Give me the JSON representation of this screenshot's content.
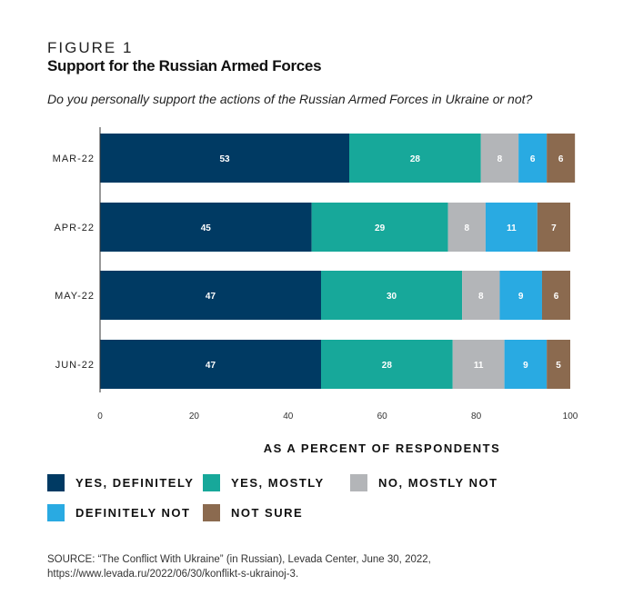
{
  "figure_label": "FIGURE 1",
  "chart_data": {
    "type": "bar",
    "orientation": "horizontal",
    "stacked": true,
    "title": "Support for the Russian Armed Forces",
    "subtitle": "Do you personally support the actions of the Russian Armed Forces in Ukraine or not?",
    "xlabel": "AS A PERCENT OF RESPONDENTS",
    "ylabel": "",
    "xlim": [
      0,
      100
    ],
    "xticks": [
      0,
      20,
      40,
      60,
      80,
      100
    ],
    "grid": false,
    "legend_placement": "bottom",
    "categories": [
      "MAR-22",
      "APR-22",
      "MAY-22",
      "JUN-22"
    ],
    "series": [
      {
        "name": "YES, DEFINITELY",
        "color": "#003a63",
        "values": [
          53,
          45,
          47,
          47
        ]
      },
      {
        "name": "YES, MOSTLY",
        "color": "#17a89a",
        "values": [
          28,
          29,
          30,
          28
        ]
      },
      {
        "name": "NO, MOSTLY NOT",
        "color": "#b3b5b8",
        "values": [
          8,
          8,
          8,
          11
        ]
      },
      {
        "name": "DEFINITELY NOT",
        "color": "#29aae2",
        "values": [
          6,
          11,
          9,
          9
        ]
      },
      {
        "name": "NOT SURE",
        "color": "#8b6a4f",
        "values": [
          6,
          7,
          6,
          5
        ]
      }
    ]
  },
  "source": "SOURCE: “The Conflict With Ukraine” (in Russian), Levada Center, June 30, 2022, https://www.levada.ru/2022/06/30/konflikt-s-ukrainoj-3."
}
